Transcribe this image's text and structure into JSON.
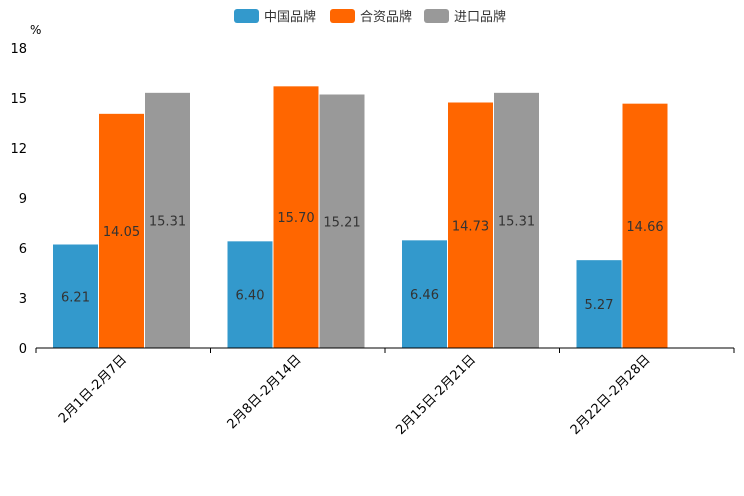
{
  "chart_data": {
    "type": "bar",
    "unit": "%",
    "categories": [
      "2月1日-2月7日",
      "2月8日-2月14日",
      "2月15日-2月21日",
      "2月22日-2月28日"
    ],
    "series": [
      {
        "name": "中国品牌",
        "color": "#3399cc",
        "values": [
          6.21,
          6.4,
          6.46,
          5.27
        ],
        "labels": [
          "6.21",
          "6.40",
          "6.46",
          "5.27"
        ]
      },
      {
        "name": "合资品牌",
        "color": "#ff6600",
        "values": [
          14.05,
          15.7,
          14.73,
          14.66
        ],
        "labels": [
          "14.05",
          "15.70",
          "14.73",
          "14.66"
        ]
      },
      {
        "name": "进口品牌",
        "color": "#999999",
        "values": [
          15.31,
          15.21,
          15.31,
          null
        ],
        "labels": [
          "15.31",
          "15.21",
          "15.31",
          ""
        ]
      }
    ],
    "yticks": [
      0,
      3,
      6,
      9,
      12,
      15,
      18
    ],
    "ylim": [
      0,
      18
    ],
    "legend_position": "top-center"
  }
}
